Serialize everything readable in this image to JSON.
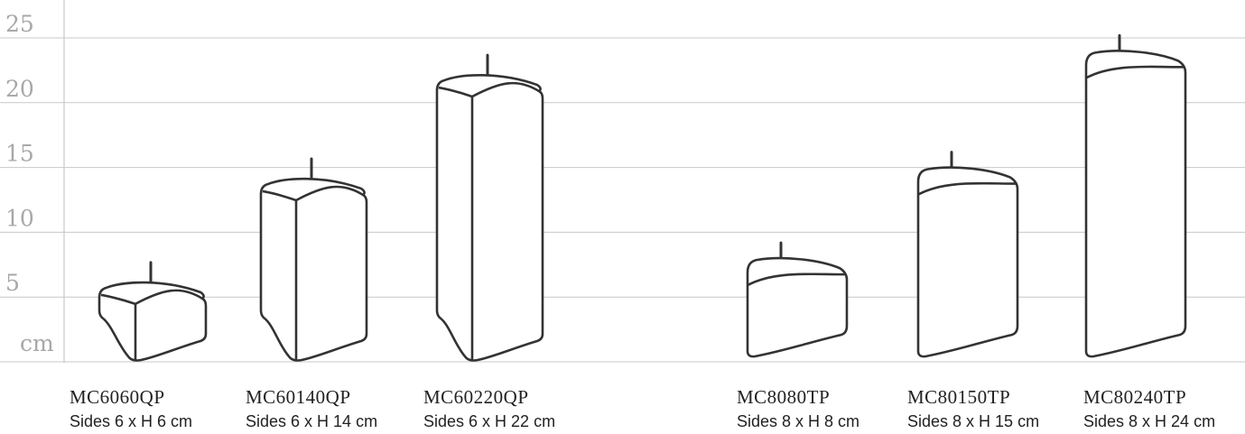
{
  "scale": {
    "unit_label": "cm",
    "ticks": [
      "5",
      "10",
      "15",
      "20",
      "25"
    ],
    "tick_values": [
      5,
      10,
      15,
      20,
      25
    ],
    "max": 25
  },
  "candles": [
    {
      "code": "MC6060QP",
      "dims": "Sides 6 x H 6 cm",
      "shape": "square",
      "height": 6
    },
    {
      "code": "MC60140QP",
      "dims": "Sides 6 x H 14 cm",
      "shape": "square",
      "height": 14
    },
    {
      "code": "MC60220QP",
      "dims": "Sides 6 x H 22 cm",
      "shape": "square",
      "height": 22
    },
    {
      "code": "MC8080TP",
      "dims": "Sides 8 x H 8 cm",
      "shape": "triangle",
      "height": 8
    },
    {
      "code": "MC80150TP",
      "dims": "Sides 8 x H 15 cm",
      "shape": "triangle",
      "height": 15
    },
    {
      "code": "MC80240TP",
      "dims": "Sides 8 x H 24 cm",
      "shape": "triangle",
      "height": 24
    }
  ],
  "colors": {
    "grid": "#c8c8c8",
    "axis": "#bdbdbd",
    "tick_text": "#a8a8a8",
    "outline": "#333333",
    "label": "#222222"
  }
}
